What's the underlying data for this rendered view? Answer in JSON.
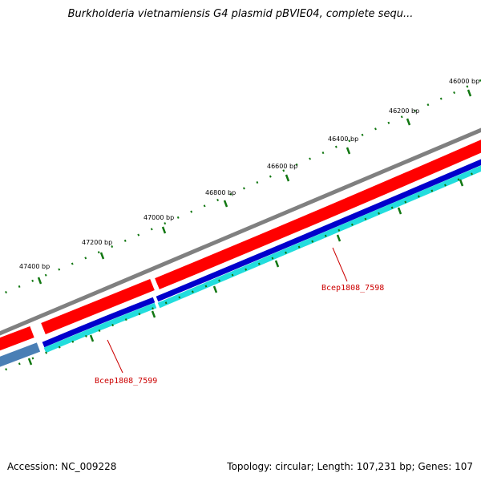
{
  "title": "Burkholderia vietnamiensis G4 plasmid pBVIE04, complete sequ...",
  "footer": {
    "accession": "Accession: NC_009228",
    "summary": "Topology: circular; Length: 107,231 bp; Genes: 107"
  },
  "ruler_labels": [
    "46000 bp",
    "46200 bp",
    "46400 bp",
    "46600 bp",
    "46800 bp",
    "47000 bp",
    "47200 bp",
    "47400 bp"
  ],
  "genes": [
    {
      "name": "Bcep1808_7598"
    },
    {
      "name": "Bcep1808_7599"
    }
  ],
  "colors": {
    "backbone": "#808080",
    "gene_forward": "#ff0000",
    "cds_band": "#0000cc",
    "feature_band": "#22dddd",
    "steelblue_feature": "#4a7fb5",
    "ticks": "#117711",
    "gene_label": "#cc0000"
  }
}
